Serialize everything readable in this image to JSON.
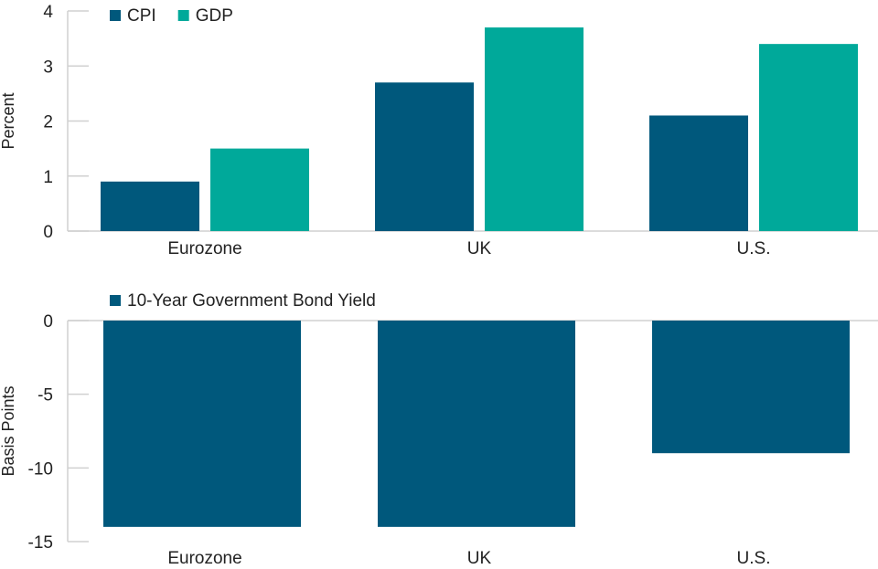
{
  "chart_data": [
    {
      "type": "bar",
      "categories": [
        "Eurozone",
        "UK",
        "U.S."
      ],
      "series": [
        {
          "name": "CPI",
          "values": [
            0.9,
            2.7,
            2.1
          ],
          "color": "#00587c"
        },
        {
          "name": "GDP",
          "values": [
            1.5,
            3.7,
            3.4
          ],
          "color": "#00a99a"
        }
      ],
      "ylabel": "Percent",
      "ylim": [
        0,
        4
      ],
      "yticks": [
        0,
        1,
        2,
        3,
        4
      ],
      "legend": "top-left",
      "grid": false
    },
    {
      "type": "bar",
      "categories": [
        "Eurozone",
        "UK",
        "U.S."
      ],
      "series": [
        {
          "name": "10-Year Government Bond Yield",
          "values": [
            -14,
            -14,
            -9
          ],
          "color": "#00587c"
        }
      ],
      "ylabel": "Basis Points",
      "ylim": [
        -15,
        0
      ],
      "yticks": [
        0,
        -5,
        -10,
        -15
      ],
      "legend": "top-left",
      "grid": false
    }
  ]
}
